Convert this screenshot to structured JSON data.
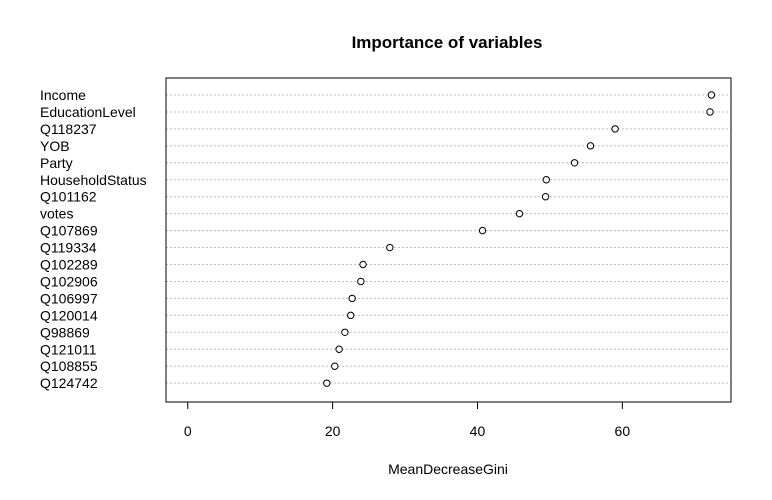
{
  "chart_data": {
    "type": "scatter",
    "title": "Importance of variables",
    "xlabel": "MeanDecreaseGini",
    "ylabel": "",
    "xlim": [
      -3,
      75
    ],
    "xticks": [
      0,
      20,
      40,
      60
    ],
    "grid": true,
    "categories": [
      "Income",
      "EducationLevel",
      "Q118237",
      "YOB",
      "Party",
      "HouseholdStatus",
      "Q101162",
      "votes",
      "Q107869",
      "Q119334",
      "Q102289",
      "Q102906",
      "Q106997",
      "Q120014",
      "Q98869",
      "Q121011",
      "Q108855",
      "Q124742"
    ],
    "values": [
      72.3,
      72.1,
      59.0,
      55.6,
      53.4,
      49.5,
      49.4,
      45.8,
      40.7,
      27.9,
      24.2,
      23.9,
      22.7,
      22.5,
      21.7,
      20.9,
      20.3,
      19.2
    ]
  }
}
